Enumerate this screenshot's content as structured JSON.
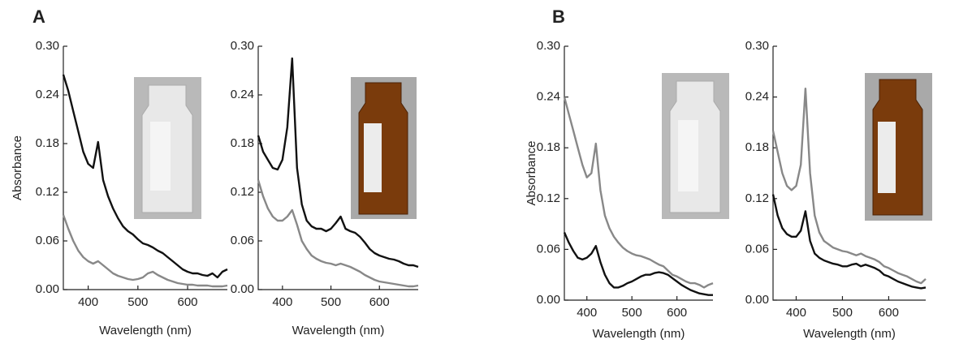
{
  "chart_data": [
    {
      "type": "line",
      "panel_label": "A",
      "ylabel": "Absorbance",
      "xlabel": "Wavelength (nm)",
      "x": [
        350,
        360,
        370,
        380,
        390,
        400,
        410,
        420,
        430,
        440,
        450,
        460,
        470,
        480,
        490,
        500,
        510,
        520,
        530,
        540,
        550,
        560,
        570,
        580,
        590,
        600,
        610,
        620,
        630,
        640,
        650,
        660,
        670,
        680
      ],
      "series": [
        {
          "color": "#111111",
          "values": [
            0.265,
            0.245,
            0.22,
            0.195,
            0.17,
            0.155,
            0.15,
            0.182,
            0.135,
            0.115,
            0.1,
            0.088,
            0.078,
            0.072,
            0.068,
            0.062,
            0.057,
            0.055,
            0.052,
            0.048,
            0.045,
            0.04,
            0.035,
            0.03,
            0.025,
            0.022,
            0.02,
            0.02,
            0.018,
            0.017,
            0.02,
            0.015,
            0.022,
            0.025
          ]
        },
        {
          "color": "#888888",
          "values": [
            0.092,
            0.075,
            0.06,
            0.048,
            0.04,
            0.035,
            0.032,
            0.035,
            0.03,
            0.025,
            0.02,
            0.017,
            0.015,
            0.013,
            0.012,
            0.013,
            0.015,
            0.02,
            0.022,
            0.018,
            0.015,
            0.012,
            0.01,
            0.008,
            0.007,
            0.006,
            0.006,
            0.005,
            0.005,
            0.005,
            0.004,
            0.004,
            0.004,
            0.005
          ]
        }
      ],
      "xlim": [
        350,
        680
      ],
      "xticks": [
        400,
        500,
        600
      ],
      "ylim": [
        0,
        0.3
      ],
      "yticks": [
        {
          "value": 0,
          "label": "0.00"
        },
        {
          "value": 0.06,
          "label": "0.06"
        },
        {
          "value": 0.12,
          "label": "0.12"
        },
        {
          "value": 0.18,
          "label": "0.18"
        },
        {
          "value": 0.24,
          "label": "0.24"
        },
        {
          "value": 0.3,
          "label": "0.30"
        }
      ]
    },
    {
      "type": "line",
      "xlabel": "Wavelength (nm)",
      "x": [
        350,
        360,
        370,
        380,
        390,
        400,
        410,
        420,
        430,
        440,
        450,
        460,
        470,
        480,
        490,
        500,
        510,
        520,
        530,
        540,
        550,
        560,
        570,
        580,
        590,
        600,
        610,
        620,
        630,
        640,
        650,
        660,
        670,
        680
      ],
      "series": [
        {
          "color": "#111111",
          "values": [
            0.19,
            0.17,
            0.16,
            0.15,
            0.148,
            0.16,
            0.2,
            0.285,
            0.15,
            0.105,
            0.085,
            0.078,
            0.075,
            0.075,
            0.072,
            0.075,
            0.082,
            0.09,
            0.075,
            0.072,
            0.07,
            0.065,
            0.058,
            0.05,
            0.045,
            0.042,
            0.04,
            0.038,
            0.037,
            0.035,
            0.032,
            0.03,
            0.03,
            0.028
          ]
        },
        {
          "color": "#888888",
          "values": [
            0.135,
            0.115,
            0.1,
            0.09,
            0.085,
            0.085,
            0.09,
            0.098,
            0.08,
            0.06,
            0.05,
            0.042,
            0.038,
            0.035,
            0.033,
            0.032,
            0.03,
            0.032,
            0.03,
            0.028,
            0.025,
            0.022,
            0.018,
            0.015,
            0.012,
            0.01,
            0.009,
            0.008,
            0.007,
            0.006,
            0.005,
            0.004,
            0.004,
            0.005
          ]
        }
      ],
      "xlim": [
        350,
        680
      ],
      "xticks": [
        400,
        500,
        600
      ],
      "ylim": [
        0,
        0.3
      ],
      "yticks": [
        {
          "value": 0,
          "label": "0.00"
        },
        {
          "value": 0.06,
          "label": "0.06"
        },
        {
          "value": 0.12,
          "label": "0.12"
        },
        {
          "value": 0.18,
          "label": "0.18"
        },
        {
          "value": 0.24,
          "label": "0.24"
        },
        {
          "value": 0.3,
          "label": "0.30"
        }
      ]
    },
    {
      "type": "line",
      "panel_label": "B",
      "ylabel": "Absorbance",
      "xlabel": "Wavelength (nm)",
      "x": [
        350,
        360,
        370,
        380,
        390,
        400,
        410,
        420,
        430,
        440,
        450,
        460,
        470,
        480,
        490,
        500,
        510,
        520,
        530,
        540,
        550,
        560,
        570,
        580,
        590,
        600,
        610,
        620,
        630,
        640,
        650,
        660,
        670,
        680
      ],
      "series": [
        {
          "color": "#888888",
          "values": [
            0.24,
            0.22,
            0.2,
            0.18,
            0.16,
            0.145,
            0.15,
            0.185,
            0.13,
            0.1,
            0.085,
            0.075,
            0.068,
            0.062,
            0.058,
            0.055,
            0.053,
            0.052,
            0.05,
            0.048,
            0.045,
            0.042,
            0.04,
            0.035,
            0.03,
            0.028,
            0.025,
            0.022,
            0.02,
            0.02,
            0.018,
            0.015,
            0.018,
            0.02
          ]
        },
        {
          "color": "#111111",
          "values": [
            0.08,
            0.068,
            0.058,
            0.05,
            0.048,
            0.05,
            0.055,
            0.064,
            0.045,
            0.03,
            0.02,
            0.015,
            0.015,
            0.017,
            0.02,
            0.022,
            0.025,
            0.028,
            0.03,
            0.03,
            0.032,
            0.033,
            0.032,
            0.03,
            0.026,
            0.022,
            0.018,
            0.015,
            0.012,
            0.01,
            0.008,
            0.007,
            0.006,
            0.006
          ]
        }
      ],
      "xlim": [
        350,
        680
      ],
      "xticks": [
        400,
        500,
        600
      ],
      "ylim": [
        0,
        0.3
      ],
      "yticks": [
        {
          "value": 0,
          "label": "0.00"
        },
        {
          "value": 0.06,
          "label": "0.06"
        },
        {
          "value": 0.12,
          "label": "0.12"
        },
        {
          "value": 0.18,
          "label": "0.18"
        },
        {
          "value": 0.24,
          "label": "0.24"
        },
        {
          "value": 0.3,
          "label": "0.30"
        }
      ]
    },
    {
      "type": "line",
      "xlabel": "Wavelength (nm)",
      "x": [
        350,
        360,
        370,
        380,
        390,
        400,
        410,
        420,
        430,
        440,
        450,
        460,
        470,
        480,
        490,
        500,
        510,
        520,
        530,
        540,
        550,
        560,
        570,
        580,
        590,
        600,
        610,
        620,
        630,
        640,
        650,
        660,
        670,
        680
      ],
      "series": [
        {
          "color": "#888888",
          "values": [
            0.2,
            0.175,
            0.15,
            0.135,
            0.13,
            0.135,
            0.16,
            0.25,
            0.15,
            0.1,
            0.08,
            0.07,
            0.066,
            0.062,
            0.06,
            0.058,
            0.057,
            0.055,
            0.053,
            0.055,
            0.052,
            0.05,
            0.048,
            0.045,
            0.04,
            0.038,
            0.035,
            0.032,
            0.03,
            0.028,
            0.025,
            0.022,
            0.02,
            0.025
          ]
        },
        {
          "color": "#111111",
          "values": [
            0.125,
            0.1,
            0.085,
            0.078,
            0.075,
            0.075,
            0.082,
            0.105,
            0.07,
            0.055,
            0.05,
            0.047,
            0.045,
            0.043,
            0.042,
            0.04,
            0.04,
            0.042,
            0.043,
            0.04,
            0.042,
            0.04,
            0.038,
            0.035,
            0.03,
            0.028,
            0.025,
            0.022,
            0.02,
            0.018,
            0.016,
            0.015,
            0.014,
            0.015
          ]
        }
      ],
      "xlim": [
        350,
        680
      ],
      "xticks": [
        400,
        500,
        600
      ],
      "ylim": [
        0,
        0.3
      ],
      "yticks": [
        {
          "value": 0,
          "label": "0.00"
        },
        {
          "value": 0.06,
          "label": "0.06"
        },
        {
          "value": 0.12,
          "label": "0.12"
        },
        {
          "value": 0.18,
          "label": "0.18"
        },
        {
          "value": 0.24,
          "label": "0.24"
        },
        {
          "value": 0.3,
          "label": "0.30"
        }
      ]
    }
  ]
}
